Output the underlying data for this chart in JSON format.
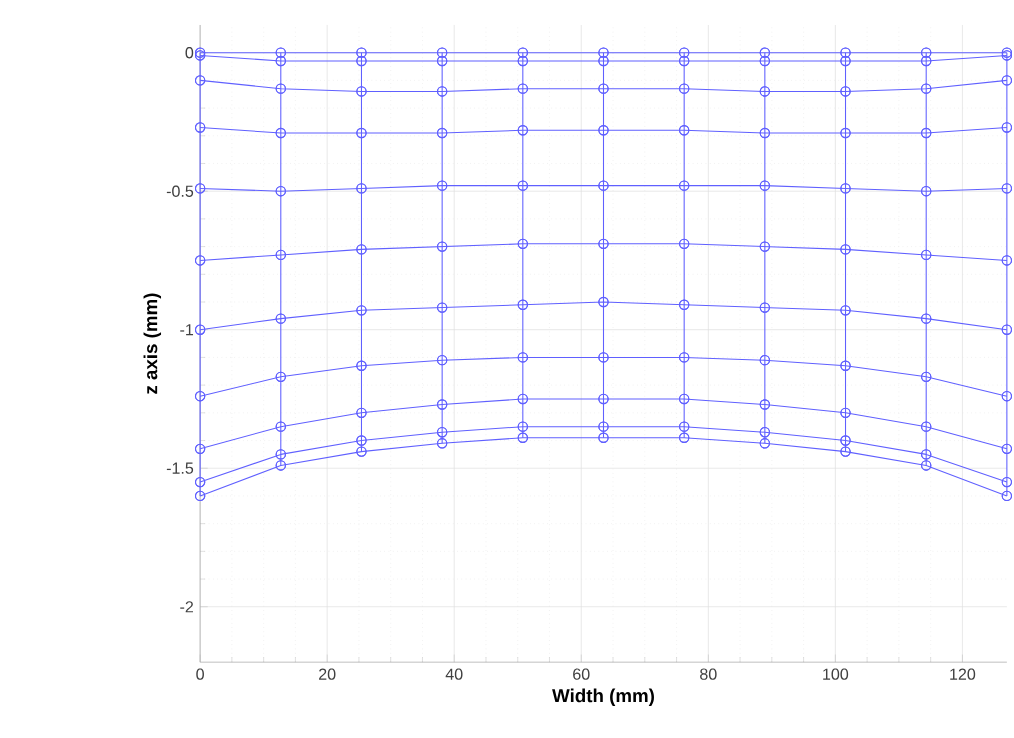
{
  "chart_data": {
    "type": "line",
    "xlabel": "Width (mm)",
    "ylabel": "z axis (mm)",
    "x": [
      0,
      12.7,
      25.4,
      38.1,
      50.8,
      63.5,
      76.2,
      88.9,
      101.6,
      114.3,
      127
    ],
    "series": [
      {
        "color": "#6060ff",
        "values": [
          0,
          0,
          0,
          0,
          0,
          0,
          0,
          0,
          0,
          0,
          0
        ]
      },
      {
        "color": "#6060ff",
        "values": [
          -0.01,
          -0.03,
          -0.03,
          -0.03,
          -0.03,
          -0.03,
          -0.03,
          -0.03,
          -0.03,
          -0.03,
          -0.01
        ]
      },
      {
        "color": "#6060ff",
        "values": [
          -0.1,
          -0.13,
          -0.14,
          -0.14,
          -0.13,
          -0.13,
          -0.13,
          -0.14,
          -0.14,
          -0.13,
          -0.1
        ]
      },
      {
        "color": "#6060ff",
        "values": [
          -0.27,
          -0.29,
          -0.29,
          -0.29,
          -0.28,
          -0.28,
          -0.28,
          -0.29,
          -0.29,
          -0.29,
          -0.27
        ]
      },
      {
        "color": "#6060ff",
        "values": [
          -0.49,
          -0.5,
          -0.49,
          -0.48,
          -0.48,
          -0.48,
          -0.48,
          -0.48,
          -0.49,
          -0.5,
          -0.49
        ]
      },
      {
        "color": "#6060ff",
        "values": [
          -0.75,
          -0.73,
          -0.71,
          -0.7,
          -0.69,
          -0.69,
          -0.69,
          -0.7,
          -0.71,
          -0.73,
          -0.75
        ]
      },
      {
        "color": "#6060ff",
        "values": [
          -1.0,
          -0.96,
          -0.93,
          -0.92,
          -0.91,
          -0.9,
          -0.91,
          -0.92,
          -0.93,
          -0.96,
          -1.0
        ]
      },
      {
        "color": "#6060ff",
        "values": [
          -1.24,
          -1.17,
          -1.13,
          -1.11,
          -1.1,
          -1.1,
          -1.1,
          -1.11,
          -1.13,
          -1.17,
          -1.24
        ]
      },
      {
        "color": "#6060ff",
        "values": [
          -1.43,
          -1.35,
          -1.3,
          -1.27,
          -1.25,
          -1.25,
          -1.25,
          -1.27,
          -1.3,
          -1.35,
          -1.43
        ]
      },
      {
        "color": "#6060ff",
        "values": [
          -1.55,
          -1.45,
          -1.4,
          -1.37,
          -1.35,
          -1.35,
          -1.35,
          -1.37,
          -1.4,
          -1.45,
          -1.55
        ]
      },
      {
        "color": "#6060ff",
        "values": [
          -1.6,
          -1.49,
          -1.44,
          -1.41,
          -1.39,
          -1.39,
          -1.39,
          -1.41,
          -1.44,
          -1.49,
          -1.6
        ]
      },
      {
        "type": "line",
        "color": "#6060ff",
        "x": [
          0,
          0,
          0,
          0,
          0,
          0,
          0,
          0,
          0,
          0,
          0
        ],
        "values": [
          0,
          -0.01,
          -0.1,
          -0.27,
          -0.49,
          -0.75,
          -1.0,
          -1.24,
          -1.43,
          -1.55,
          -1.6
        ]
      },
      {
        "type": "line",
        "color": "#6060ff",
        "x": [
          12.7,
          12.7,
          12.7,
          12.7,
          12.7,
          12.7,
          12.7,
          12.7,
          12.7,
          12.7,
          12.7
        ],
        "values": [
          0,
          -0.03,
          -0.13,
          -0.29,
          -0.5,
          -0.73,
          -0.96,
          -1.17,
          -1.35,
          -1.45,
          -1.49
        ]
      },
      {
        "type": "line",
        "color": "#6060ff",
        "x": [
          25.4,
          25.4,
          25.4,
          25.4,
          25.4,
          25.4,
          25.4,
          25.4,
          25.4,
          25.4,
          25.4
        ],
        "values": [
          0,
          -0.03,
          -0.14,
          -0.29,
          -0.49,
          -0.71,
          -0.93,
          -1.13,
          -1.3,
          -1.4,
          -1.44
        ]
      },
      {
        "type": "line",
        "color": "#6060ff",
        "x": [
          38.1,
          38.1,
          38.1,
          38.1,
          38.1,
          38.1,
          38.1,
          38.1,
          38.1,
          38.1,
          38.1
        ],
        "values": [
          0,
          -0.03,
          -0.14,
          -0.29,
          -0.48,
          -0.7,
          -0.92,
          -1.11,
          -1.27,
          -1.37,
          -1.41
        ]
      },
      {
        "type": "line",
        "color": "#6060ff",
        "x": [
          50.8,
          50.8,
          50.8,
          50.8,
          50.8,
          50.8,
          50.8,
          50.8,
          50.8,
          50.8,
          50.8
        ],
        "values": [
          0,
          -0.03,
          -0.13,
          -0.28,
          -0.48,
          -0.69,
          -0.91,
          -1.1,
          -1.25,
          -1.35,
          -1.39
        ]
      },
      {
        "type": "line",
        "color": "#6060ff",
        "x": [
          63.5,
          63.5,
          63.5,
          63.5,
          63.5,
          63.5,
          63.5,
          63.5,
          63.5,
          63.5,
          63.5
        ],
        "values": [
          0,
          -0.03,
          -0.13,
          -0.28,
          -0.48,
          -0.69,
          -0.9,
          -1.1,
          -1.25,
          -1.35,
          -1.39
        ]
      },
      {
        "type": "line",
        "color": "#6060ff",
        "x": [
          76.2,
          76.2,
          76.2,
          76.2,
          76.2,
          76.2,
          76.2,
          76.2,
          76.2,
          76.2,
          76.2
        ],
        "values": [
          0,
          -0.03,
          -0.13,
          -0.28,
          -0.48,
          -0.69,
          -0.91,
          -1.1,
          -1.25,
          -1.35,
          -1.39
        ]
      },
      {
        "type": "line",
        "color": "#6060ff",
        "x": [
          88.9,
          88.9,
          88.9,
          88.9,
          88.9,
          88.9,
          88.9,
          88.9,
          88.9,
          88.9,
          88.9
        ],
        "values": [
          0,
          -0.03,
          -0.14,
          -0.29,
          -0.48,
          -0.7,
          -0.92,
          -1.11,
          -1.27,
          -1.37,
          -1.41
        ]
      },
      {
        "type": "line",
        "color": "#6060ff",
        "x": [
          101.6,
          101.6,
          101.6,
          101.6,
          101.6,
          101.6,
          101.6,
          101.6,
          101.6,
          101.6,
          101.6
        ],
        "values": [
          0,
          -0.03,
          -0.14,
          -0.29,
          -0.49,
          -0.71,
          -0.93,
          -1.13,
          -1.3,
          -1.4,
          -1.44
        ]
      },
      {
        "type": "line",
        "color": "#6060ff",
        "x": [
          114.3,
          114.3,
          114.3,
          114.3,
          114.3,
          114.3,
          114.3,
          114.3,
          114.3,
          114.3,
          114.3
        ],
        "values": [
          0,
          -0.03,
          -0.13,
          -0.29,
          -0.5,
          -0.73,
          -0.96,
          -1.17,
          -1.35,
          -1.45,
          -1.49
        ]
      },
      {
        "type": "line",
        "color": "#6060ff",
        "x": [
          127,
          127,
          127,
          127,
          127,
          127,
          127,
          127,
          127,
          127,
          127
        ],
        "values": [
          0,
          -0.01,
          -0.1,
          -0.27,
          -0.49,
          -0.75,
          -1.0,
          -1.24,
          -1.43,
          -1.55,
          -1.6
        ]
      }
    ],
    "xlim": [
      0,
      127
    ],
    "ylim": [
      -2.2,
      0.1
    ],
    "xticks": [
      0,
      20,
      40,
      60,
      80,
      100,
      120
    ],
    "yticks": [
      -2,
      -1.5,
      -1,
      -0.5,
      0
    ],
    "grid": true,
    "marker": "circle",
    "line_style": "solid"
  }
}
